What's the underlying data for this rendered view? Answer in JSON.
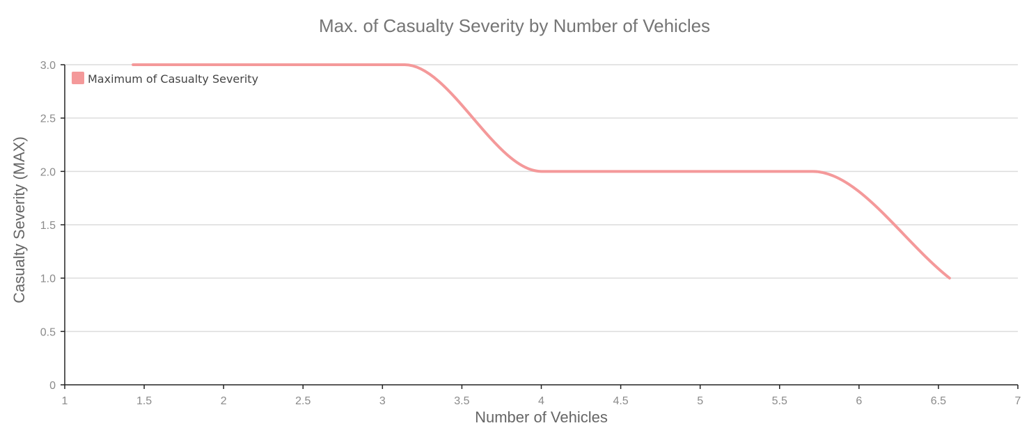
{
  "chart_data": {
    "type": "line",
    "title": "Max. of Casualty Severity by Number of Vehicles",
    "xlabel": "Number of Vehicles",
    "ylabel": "Casualty Severity (MAX)",
    "xlim": [
      1,
      7
    ],
    "ylim": [
      0,
      3
    ],
    "x_ticks": [
      "1",
      "1.5",
      "2",
      "2.5",
      "3",
      "3.5",
      "4",
      "4.5",
      "5",
      "5.5",
      "6",
      "6.5",
      "7"
    ],
    "y_ticks": [
      "0",
      "0.5",
      "1.0",
      "1.5",
      "2.0",
      "2.5",
      "3.0"
    ],
    "grid": true,
    "legend_position": "top-left",
    "series": [
      {
        "name": "Maximum of Casualty Severity",
        "color": "#f4999a",
        "x": [
          1.43,
          3.14,
          4.0,
          5.71,
          6.57
        ],
        "y": [
          3,
          3,
          2,
          2,
          1
        ]
      }
    ]
  }
}
